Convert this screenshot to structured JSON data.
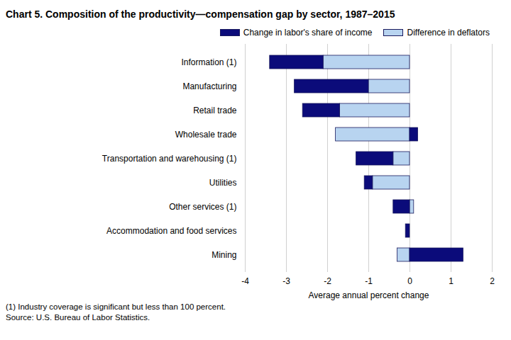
{
  "chart_data": {
    "type": "bar",
    "orientation": "horizontal",
    "stacked": true,
    "title": "Chart 5. Composition of the productivity—compensation gap by sector, 1987–2015",
    "x_label": "Average annual percent change",
    "categories": [
      "Information (1)",
      "Manufacturing",
      "Retail trade",
      "Wholesale trade",
      "Transportation and warehousing (1)",
      "Utilities",
      "Other services (1)",
      "Accommodation and food services",
      "Mining"
    ],
    "series": [
      {
        "name": "Change in labor's share of income",
        "color": "#0b0b7a",
        "values": [
          -1.3,
          -1.8,
          -0.9,
          0.2,
          -0.9,
          -0.2,
          -0.4,
          -0.1,
          1.3
        ]
      },
      {
        "name": "Difference in deflators",
        "color": "#b8d4f0",
        "values": [
          -2.1,
          -1.0,
          -1.7,
          -1.8,
          -0.4,
          -0.9,
          0.1,
          0,
          -0.3
        ]
      }
    ],
    "xlim": [
      -4,
      2
    ],
    "xticks": [
      -4,
      -3,
      -2,
      -1,
      0,
      1,
      2
    ],
    "grid": true,
    "legend": "top-right",
    "notes": [
      "(1) Industry coverage is significant but less than 100 percent.",
      "Source: U.S. Bureau of Labor Statistics."
    ]
  }
}
